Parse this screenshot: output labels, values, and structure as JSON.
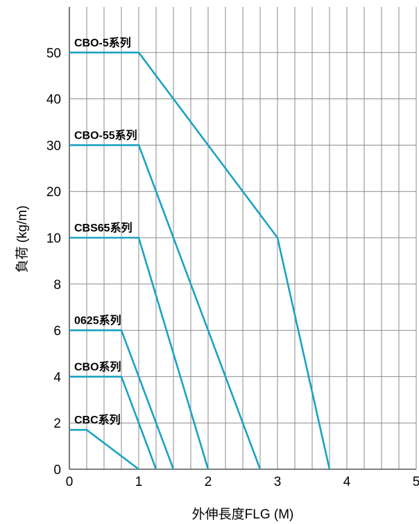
{
  "chart_data": {
    "type": "line",
    "title": "",
    "xlabel": "外伸長度FLG (M)",
    "ylabel": "負荷 (kg/m)",
    "x_ticks": [
      "0",
      "1",
      "2",
      "3",
      "4",
      "5"
    ],
    "y_ticks": [
      "0",
      "2",
      "4",
      "6",
      "8",
      "10",
      "20",
      "30",
      "40",
      "50"
    ],
    "xlim": [
      0,
      5
    ],
    "y_scale": "piecewise: uniform spacing, 0-10 in steps of 2, then 10-50 in steps of 10",
    "grid": true,
    "line_color": "#1aa2c1",
    "series": [
      {
        "name": "CBO-5系列",
        "points": [
          [
            0,
            50
          ],
          [
            1,
            50
          ],
          [
            3,
            10
          ],
          [
            3.75,
            0
          ]
        ]
      },
      {
        "name": "CBO-55系列",
        "points": [
          [
            0,
            30
          ],
          [
            1,
            30
          ],
          [
            2.75,
            0
          ]
        ]
      },
      {
        "name": "CBS65系列",
        "points": [
          [
            0,
            10
          ],
          [
            1,
            10
          ],
          [
            2,
            0
          ]
        ]
      },
      {
        "name": "0625系列",
        "points": [
          [
            0,
            6
          ],
          [
            0.75,
            6
          ],
          [
            1.5,
            0
          ]
        ]
      },
      {
        "name": "CBO系列",
        "points": [
          [
            0,
            4
          ],
          [
            0.75,
            4
          ],
          [
            1.25,
            0
          ]
        ]
      },
      {
        "name": "CBC系列",
        "points": [
          [
            0,
            1.7
          ],
          [
            0.25,
            1.7
          ],
          [
            1,
            0
          ]
        ]
      }
    ]
  }
}
